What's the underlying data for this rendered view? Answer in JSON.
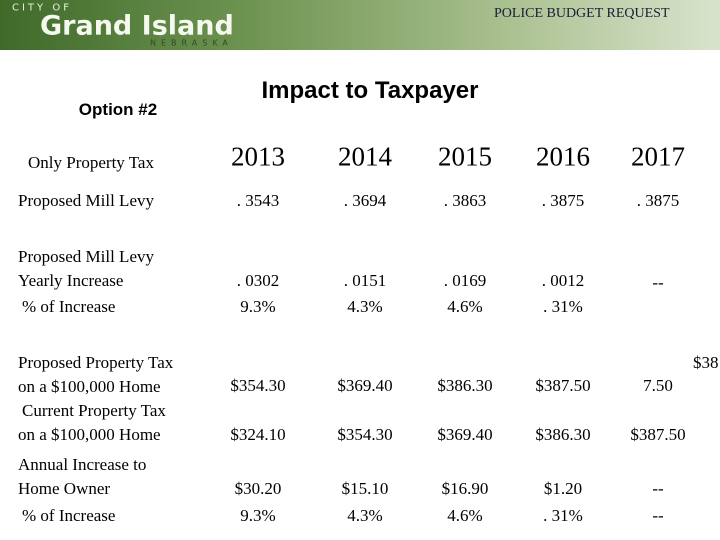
{
  "header": {
    "city_of": "CITY OF",
    "city": "Grand Island",
    "state": "NEBRASKA",
    "department": "POLICE BUDGET REQUEST"
  },
  "option": "Option #2",
  "title": "Impact to Taxpayer",
  "table": {
    "corner": "Only Property Tax",
    "years": [
      "2013",
      "2014",
      "2015",
      "2016",
      "2017"
    ],
    "rows": [
      {
        "label": [
          "Proposed Mill Levy"
        ],
        "cells": [
          [
            ". 3543"
          ],
          [
            ". 3694"
          ],
          [
            ". 3863"
          ],
          [
            ". 3875"
          ],
          [
            ". 3875"
          ]
        ]
      },
      {
        "label": [
          "Proposed Mill Levy",
          "Yearly Increase",
          "% of Increase"
        ],
        "cells": [
          [
            ". 0302",
            "9.3%"
          ],
          [
            ". 0151",
            "4.3%"
          ],
          [
            ". 0169",
            "4.6%"
          ],
          [
            ". 0012",
            ". 31%"
          ],
          [
            "--"
          ]
        ]
      },
      {
        "label": [
          "Proposed Property Tax",
          "on a $100,000 Home"
        ],
        "cells": [
          [
            "$354.30"
          ],
          [
            "$369.40"
          ],
          [
            "$386.30"
          ],
          [
            "$387.50"
          ],
          [
            "7.50"
          ]
        ],
        "overflow": "$38"
      },
      {
        "label": [
          "Current Property Tax",
          "on a $100,000 Home"
        ],
        "cells": [
          [
            "$324.10"
          ],
          [
            "$354.30"
          ],
          [
            "$369.40"
          ],
          [
            "$386.30"
          ],
          [
            "$387.50"
          ]
        ]
      },
      {
        "label": [
          "Annual Increase to",
          "Home Owner",
          "% of Increase"
        ],
        "cells": [
          [
            "$30.20",
            "9.3%"
          ],
          [
            "$15.10",
            "4.3%"
          ],
          [
            "$16.90",
            "4.6%"
          ],
          [
            "$1.20",
            ". 31%"
          ],
          [
            "--",
            "--"
          ]
        ]
      }
    ]
  }
}
